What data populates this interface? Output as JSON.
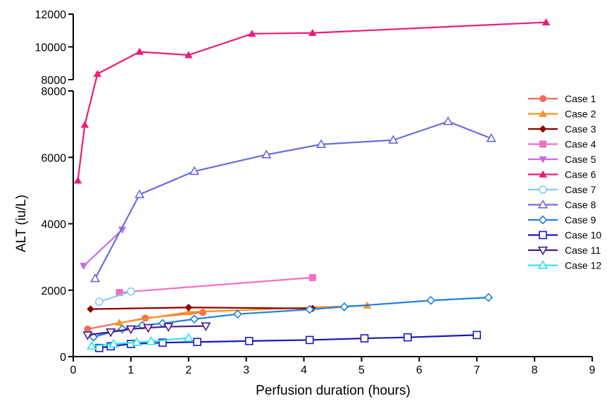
{
  "chart_data": {
    "type": "line",
    "xlabel": "Perfusion duration (hours)",
    "ylabel": "ALT (iu/L)",
    "xlim": [
      0,
      9
    ],
    "x_ticks": [
      "0",
      "1",
      "2",
      "3",
      "4",
      "5",
      "6",
      "7",
      "8",
      "9"
    ],
    "y_axis_break": true,
    "ylim_lower": [
      0,
      8000
    ],
    "ylim_upper": [
      8000,
      12000
    ],
    "y_ticks_lower": [
      "0",
      "2000",
      "4000",
      "6000",
      "8000"
    ],
    "y_ticks_upper": [
      "8000",
      "10000",
      "12000"
    ],
    "legend_position": "right",
    "series": [
      {
        "name": "Case 1",
        "color": "#f26b5b",
        "marker": "circle-filled",
        "points": [
          [
            0.25,
            830
          ],
          [
            1.25,
            1160
          ],
          [
            2.25,
            1330
          ]
        ]
      },
      {
        "name": "Case 2",
        "color": "#f7941d",
        "marker": "triangle-filled",
        "points": [
          [
            0.8,
            1020
          ],
          [
            2.0,
            1340
          ],
          [
            5.1,
            1540
          ]
        ]
      },
      {
        "name": "Case 3",
        "color": "#8b0000",
        "marker": "diamond-filled",
        "points": [
          [
            0.3,
            1430
          ],
          [
            2.0,
            1480
          ],
          [
            4.15,
            1450
          ]
        ]
      },
      {
        "name": "Case 4",
        "color": "#f06fc6",
        "marker": "square-filled",
        "points": [
          [
            0.8,
            1930
          ],
          [
            4.15,
            2380
          ]
        ]
      },
      {
        "name": "Case 5",
        "color": "#c86dea",
        "marker": "invtriangle-filled",
        "points": [
          [
            0.18,
            2730
          ],
          [
            0.85,
            3820
          ]
        ]
      },
      {
        "name": "Case 6",
        "color": "#ec1c79",
        "marker": "triangle-filled",
        "points": [
          [
            0.08,
            5300
          ],
          [
            0.2,
            6980
          ],
          [
            0.42,
            8350
          ],
          [
            1.15,
            9700
          ],
          [
            2.0,
            9500
          ],
          [
            3.1,
            10800
          ],
          [
            4.15,
            10850
          ],
          [
            8.2,
            11500
          ]
        ]
      },
      {
        "name": "Case 7",
        "color": "#7fcdee",
        "marker": "circle-open",
        "points": [
          [
            0.45,
            1650
          ],
          [
            1.0,
            1960
          ]
        ]
      },
      {
        "name": "Case 8",
        "color": "#6a6be0",
        "marker": "triangle-open",
        "points": [
          [
            0.38,
            2350
          ],
          [
            1.15,
            4880
          ],
          [
            2.1,
            5580
          ],
          [
            3.35,
            6080
          ],
          [
            4.3,
            6390
          ],
          [
            5.55,
            6520
          ],
          [
            6.5,
            7080
          ],
          [
            7.25,
            6570
          ]
        ]
      },
      {
        "name": "Case 9",
        "color": "#1f7fe0",
        "marker": "diamond-open",
        "points": [
          [
            0.35,
            590
          ],
          [
            0.85,
            830
          ],
          [
            1.2,
            940
          ],
          [
            1.55,
            1000
          ],
          [
            2.1,
            1130
          ],
          [
            2.85,
            1280
          ],
          [
            4.1,
            1420
          ],
          [
            4.7,
            1500
          ],
          [
            6.2,
            1690
          ],
          [
            7.2,
            1780
          ]
        ]
      },
      {
        "name": "Case 10",
        "color": "#1a1ab8",
        "marker": "square-open",
        "points": [
          [
            0.45,
            260
          ],
          [
            0.65,
            310
          ],
          [
            1.0,
            380
          ],
          [
            1.55,
            420
          ],
          [
            2.15,
            440
          ],
          [
            3.05,
            470
          ],
          [
            4.1,
            500
          ],
          [
            5.05,
            550
          ],
          [
            5.8,
            580
          ],
          [
            7.0,
            650
          ]
        ]
      },
      {
        "name": "Case 11",
        "color": "#4b1a8c",
        "marker": "invtriangle-open",
        "points": [
          [
            0.25,
            650
          ],
          [
            0.65,
            740
          ],
          [
            1.0,
            830
          ],
          [
            1.3,
            870
          ],
          [
            1.65,
            900
          ],
          [
            2.3,
            920
          ]
        ]
      },
      {
        "name": "Case 12",
        "color": "#2ee3f0",
        "marker": "triangle-open",
        "points": [
          [
            0.32,
            320
          ],
          [
            0.7,
            380
          ],
          [
            1.1,
            430
          ],
          [
            1.35,
            460
          ],
          [
            2.0,
            560
          ]
        ]
      }
    ]
  }
}
